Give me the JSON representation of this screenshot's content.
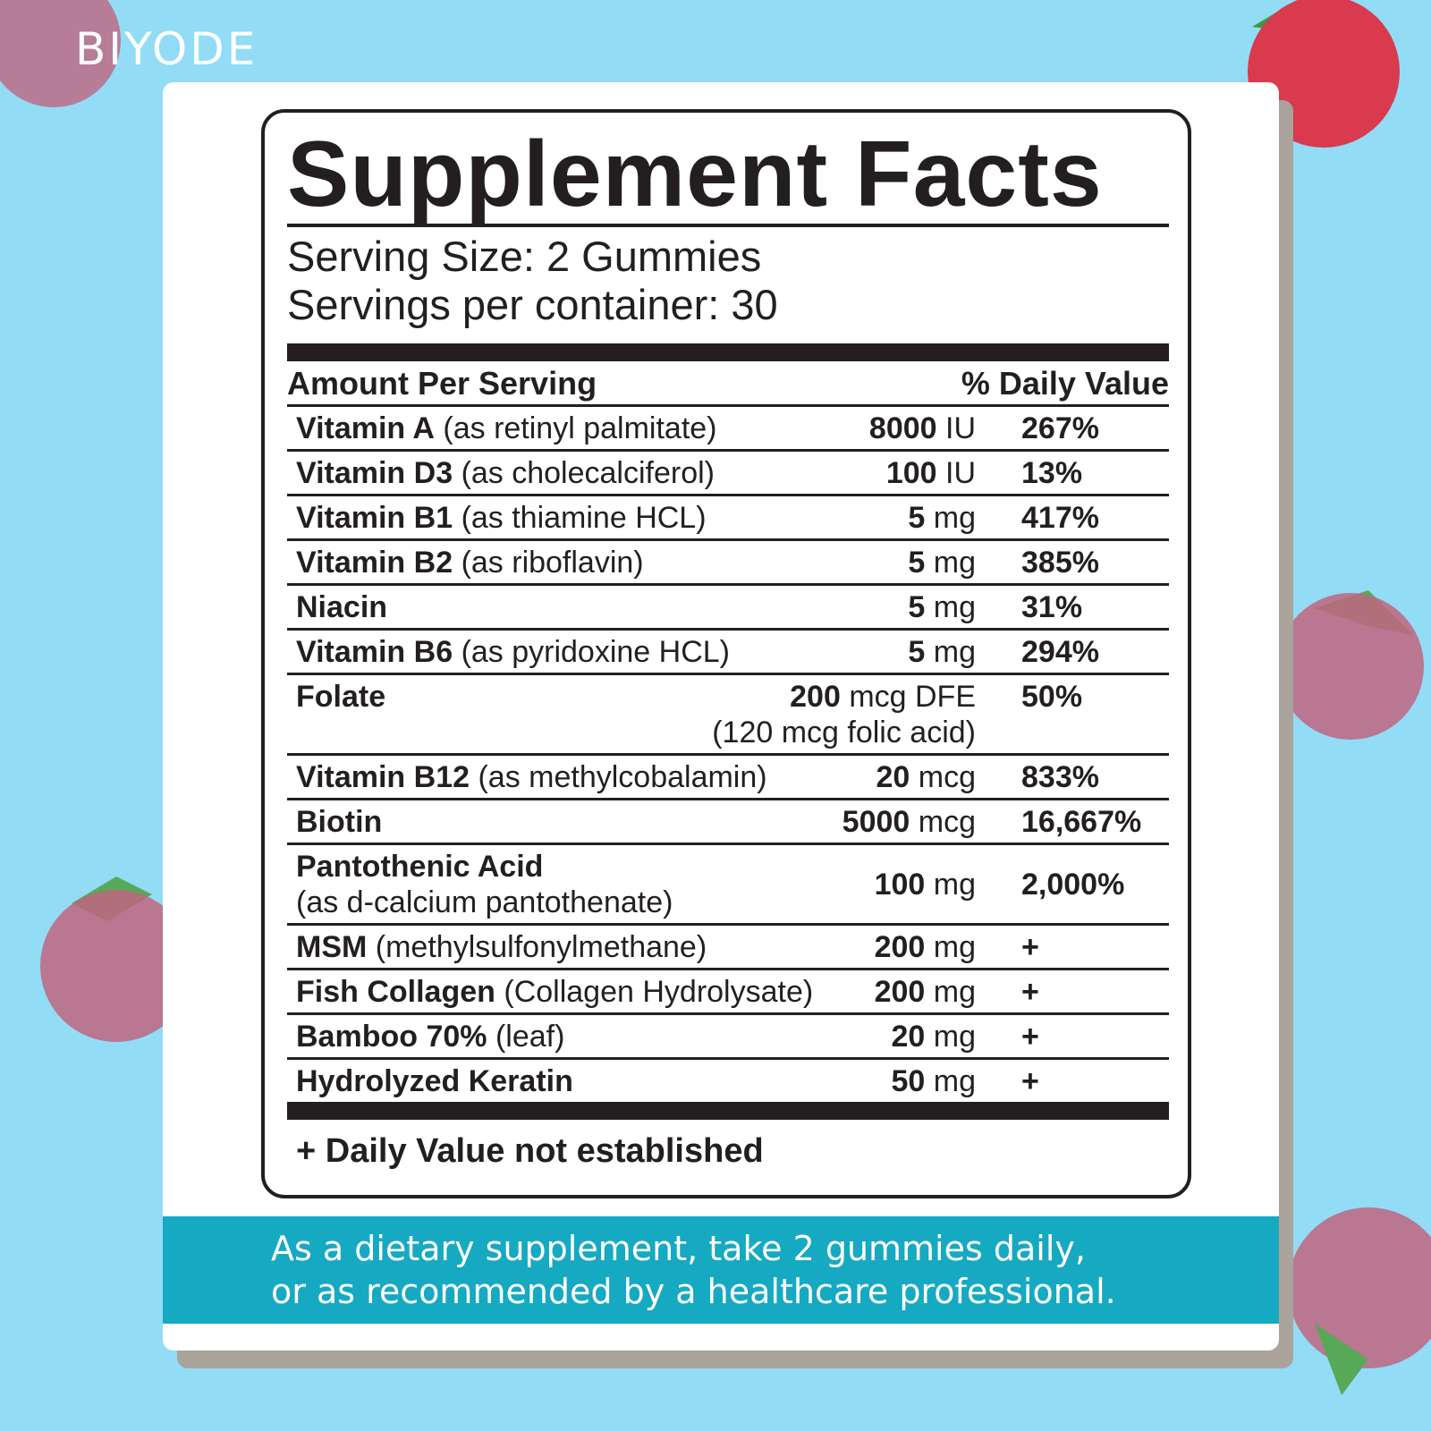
{
  "brand": "BIYODE",
  "facts": {
    "title": "Supplement Facts",
    "serving_size": "Serving Size: 2 Gummies",
    "servings_per_container": "Servings per container: 30",
    "header": {
      "amount": "Amount Per Serving",
      "daily_value": "% Daily Value"
    },
    "rows": [
      {
        "name": "Vitamin A",
        "detail": "(as retinyl palmitate)",
        "amount": "8000",
        "unit": "IU",
        "dv": "267%"
      },
      {
        "name": "Vitamin D3",
        "detail": "(as cholecalciferol)",
        "amount": "100",
        "unit": "IU",
        "dv": "13%"
      },
      {
        "name": "Vitamin B1",
        "detail": "(as thiamine HCL)",
        "amount": "5",
        "unit": "mg",
        "dv": "417%"
      },
      {
        "name": "Vitamin B2",
        "detail": "(as riboflavin)",
        "amount": "5",
        "unit": "mg",
        "dv": "385%"
      },
      {
        "name": "Niacin",
        "amount": "5",
        "unit": "mg",
        "dv": "31%"
      },
      {
        "name": "Vitamin B6",
        "detail": "(as pyridoxine HCL)",
        "amount": "5",
        "unit": "mg",
        "dv": "294%"
      },
      {
        "name": "Folate",
        "amount": "200",
        "unit": "mcg DFE",
        "note": "(120 mcg folic acid)",
        "dv": "50%"
      },
      {
        "name": "Vitamin B12",
        "detail": "(as methylcobalamin)",
        "amount": "20",
        "unit": "mcg",
        "dv": "833%"
      },
      {
        "name": "Biotin",
        "amount": "5000",
        "unit": "mcg",
        "dv": "16,667%"
      },
      {
        "name": "Pantothenic Acid",
        "detail": "(as d-calcium pantothenate)",
        "amount": "100",
        "unit": "mg",
        "dv": "2,000%"
      },
      {
        "name": "MSM",
        "detail": "(methylsulfonylmethane)",
        "amount": "200",
        "unit": "mg",
        "dv": "+"
      },
      {
        "name": "Fish Collagen",
        "detail": "(Collagen Hydrolysate)",
        "amount": "200",
        "unit": "mg",
        "dv": "+"
      },
      {
        "name": "Bamboo 70%",
        "detail": "(leaf)",
        "amount": "20",
        "unit": "mg",
        "dv": "+"
      },
      {
        "name": "Hydrolyzed Keratin",
        "amount": "50",
        "unit": "mg",
        "dv": "+"
      }
    ],
    "footnote": "+ Daily Value not established"
  },
  "directions": [
    "As a dietary supplement, take 2 gummies daily,",
    "or as recommended by a healthcare professional."
  ]
}
